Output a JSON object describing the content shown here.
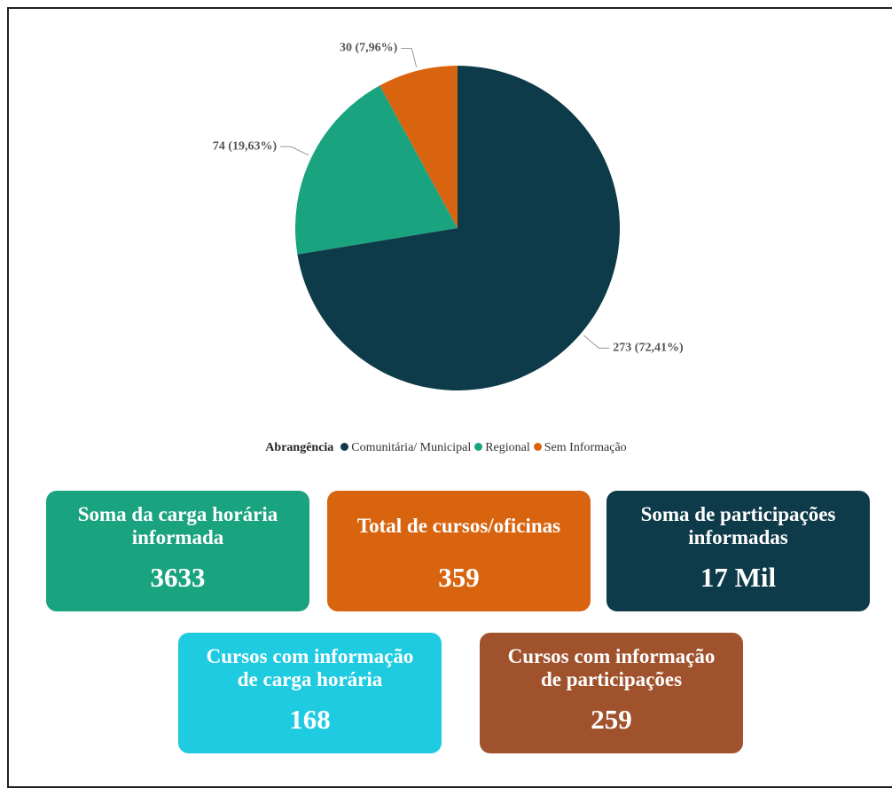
{
  "chart_data": {
    "type": "pie",
    "categories": [
      "Comunitária/ Municipal",
      "Regional",
      "Sem Informação"
    ],
    "values": [
      273,
      74,
      30
    ],
    "value_labels": [
      "273 (72,41%)",
      "74 (19,63%)",
      "30 (7,96%)"
    ],
    "colors": [
      "#0e3b4a",
      "#1aa37f",
      "#d9640f"
    ],
    "legend_title": "Abrangência",
    "legend": "bottom"
  },
  "cards": [
    {
      "title": "Soma da carga horária informada",
      "value": 3633,
      "color": "#1aa37f"
    },
    {
      "title": "Total de cursos/oficinas",
      "value": 359,
      "color": "#d9640f"
    },
    {
      "title": "Soma de participações informadas",
      "value": "17 Mil",
      "color": "#0e3b4a"
    },
    {
      "title": "Cursos com informação de carga horária",
      "value": 168,
      "color": "#1ecbe1"
    },
    {
      "title": "Cursos com informação de participações",
      "value": 259,
      "color": "#a0522d"
    }
  ]
}
